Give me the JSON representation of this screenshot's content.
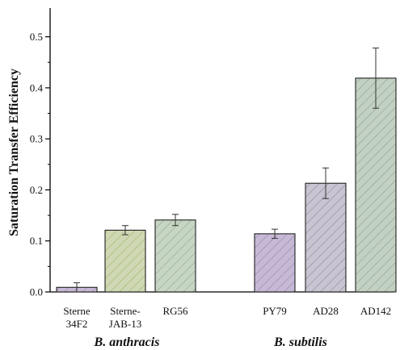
{
  "chart_data": {
    "type": "bar",
    "ylabel": "Saturation Transfer Efficiency",
    "xlabel": "",
    "ylim": [
      0,
      0.55
    ],
    "yticks": [
      0.0,
      0.1,
      0.2,
      0.3,
      0.4,
      0.5
    ],
    "ytick_labels": [
      "0.0",
      "0.1",
      "0.2",
      "0.3",
      "0.4",
      "0.5"
    ],
    "grid": false,
    "categories": [
      {
        "label_lines": [
          "Sterne",
          "34F2"
        ],
        "value": 0.009,
        "error": 0.009,
        "color": "#c7b9d6",
        "hatch_color": "#8f88a8",
        "group": "B. anthracis"
      },
      {
        "label_lines": [
          "Sterne-",
          "JAB-13"
        ],
        "value": 0.121,
        "error": 0.009,
        "color": "#cfd8b4",
        "hatch_color": "#a6b26a",
        "group": "B. anthracis"
      },
      {
        "label_lines": [
          "RG56"
        ],
        "value": 0.141,
        "error": 0.011,
        "color": "#c7d6c3",
        "hatch_color": "#8fa891",
        "group": "B. anthracis"
      },
      {
        "label_lines": [
          "PY79"
        ],
        "value": 0.114,
        "error": 0.009,
        "color": "#c7b9d6",
        "hatch_color": "#8f88a8",
        "group": "B. subtilis"
      },
      {
        "label_lines": [
          "AD28"
        ],
        "value": 0.213,
        "error": 0.03,
        "color": "#c9c4d2",
        "hatch_color": "#8f8a9e",
        "group": "B. subtilis"
      },
      {
        "label_lines": [
          "AD142"
        ],
        "value": 0.419,
        "error": 0.059,
        "color": "#c3d1c3",
        "hatch_color": "#8aa18e",
        "group": "B. subtilis"
      }
    ],
    "groups": [
      "B. anthracis",
      "B. subtilis"
    ]
  }
}
